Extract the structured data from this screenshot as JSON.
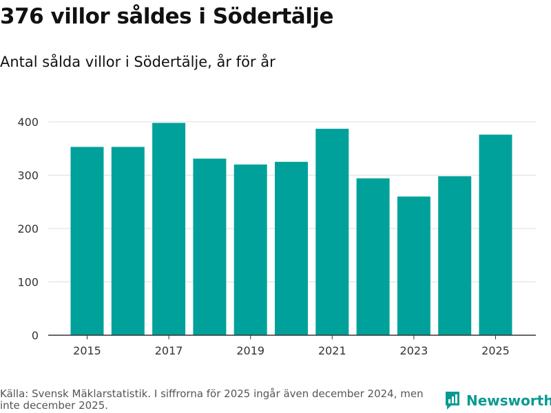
{
  "header": {
    "title": "376 villor såldes i Södertälje",
    "subtitle": "Antal sålda villor i Södertälje, år för år"
  },
  "footer": {
    "source_line1": "Källa: Svensk Mäklarstatistik. I siffrorna för 2025 ingår även december 2024, men",
    "source_line2": "inte december 2025.",
    "brand": "Newsworthy"
  },
  "colors": {
    "bar": "#00a19a",
    "grid": "#dddddd",
    "axis": "#333333",
    "brand": "#0a9a91"
  },
  "chart_data": {
    "type": "bar",
    "title": "Antal sålda villor i Södertälje, år för år",
    "xlabel": "",
    "ylabel": "",
    "categories": [
      "2015",
      "2016",
      "2017",
      "2018",
      "2019",
      "2020",
      "2021",
      "2022",
      "2023",
      "2024",
      "2025"
    ],
    "values": [
      353,
      353,
      398,
      331,
      320,
      325,
      387,
      294,
      260,
      298,
      376
    ],
    "x_tick_labels": [
      "2015",
      "2017",
      "2019",
      "2021",
      "2023",
      "2025"
    ],
    "y_ticks": [
      0,
      100,
      200,
      300,
      400
    ],
    "ylim": [
      0,
      400
    ],
    "grid": true
  }
}
